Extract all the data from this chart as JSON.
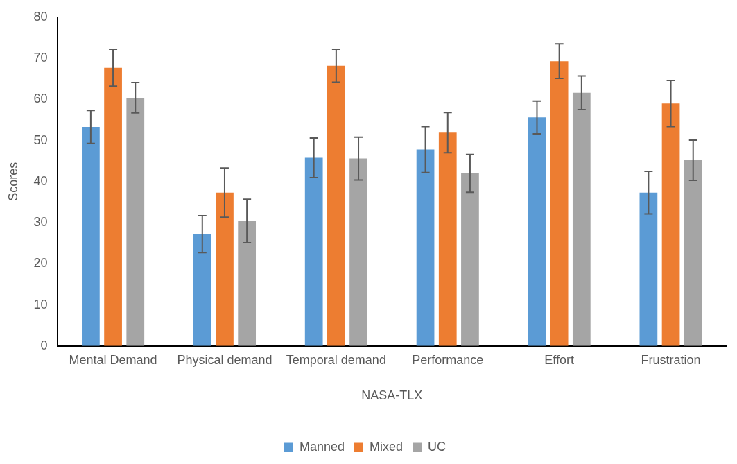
{
  "chart_data": {
    "type": "bar",
    "xlabel": "NASA-TLX",
    "ylabel": "Scores",
    "categories": [
      "Mental Demand",
      "Physical demand",
      "Temporal demand",
      "Performance",
      "Effort",
      "Frustration"
    ],
    "series": [
      {
        "name": "Manned",
        "color": "#5b9bd5",
        "values": [
          53.3,
          27.2,
          45.8,
          47.8,
          55.6,
          37.3
        ],
        "errors": [
          4,
          4.5,
          4.8,
          5.6,
          4,
          5.2
        ]
      },
      {
        "name": "Mixed",
        "color": "#ed7d31",
        "values": [
          67.7,
          37.3,
          68.2,
          51.9,
          69.3,
          59.0
        ],
        "errors": [
          4.5,
          6,
          4,
          4.9,
          4.2,
          5.6
        ]
      },
      {
        "name": "UC",
        "color": "#a5a5a5",
        "values": [
          60.4,
          30.4,
          45.6,
          42.0,
          61.6,
          45.2
        ],
        "errors": [
          3.7,
          5.3,
          5.2,
          4.6,
          4.1,
          4.9
        ]
      }
    ],
    "ylim": [
      0,
      80
    ],
    "yticks": [
      0,
      10,
      20,
      30,
      40,
      50,
      60,
      70,
      80
    ],
    "grid": false,
    "legend": "bottom"
  }
}
